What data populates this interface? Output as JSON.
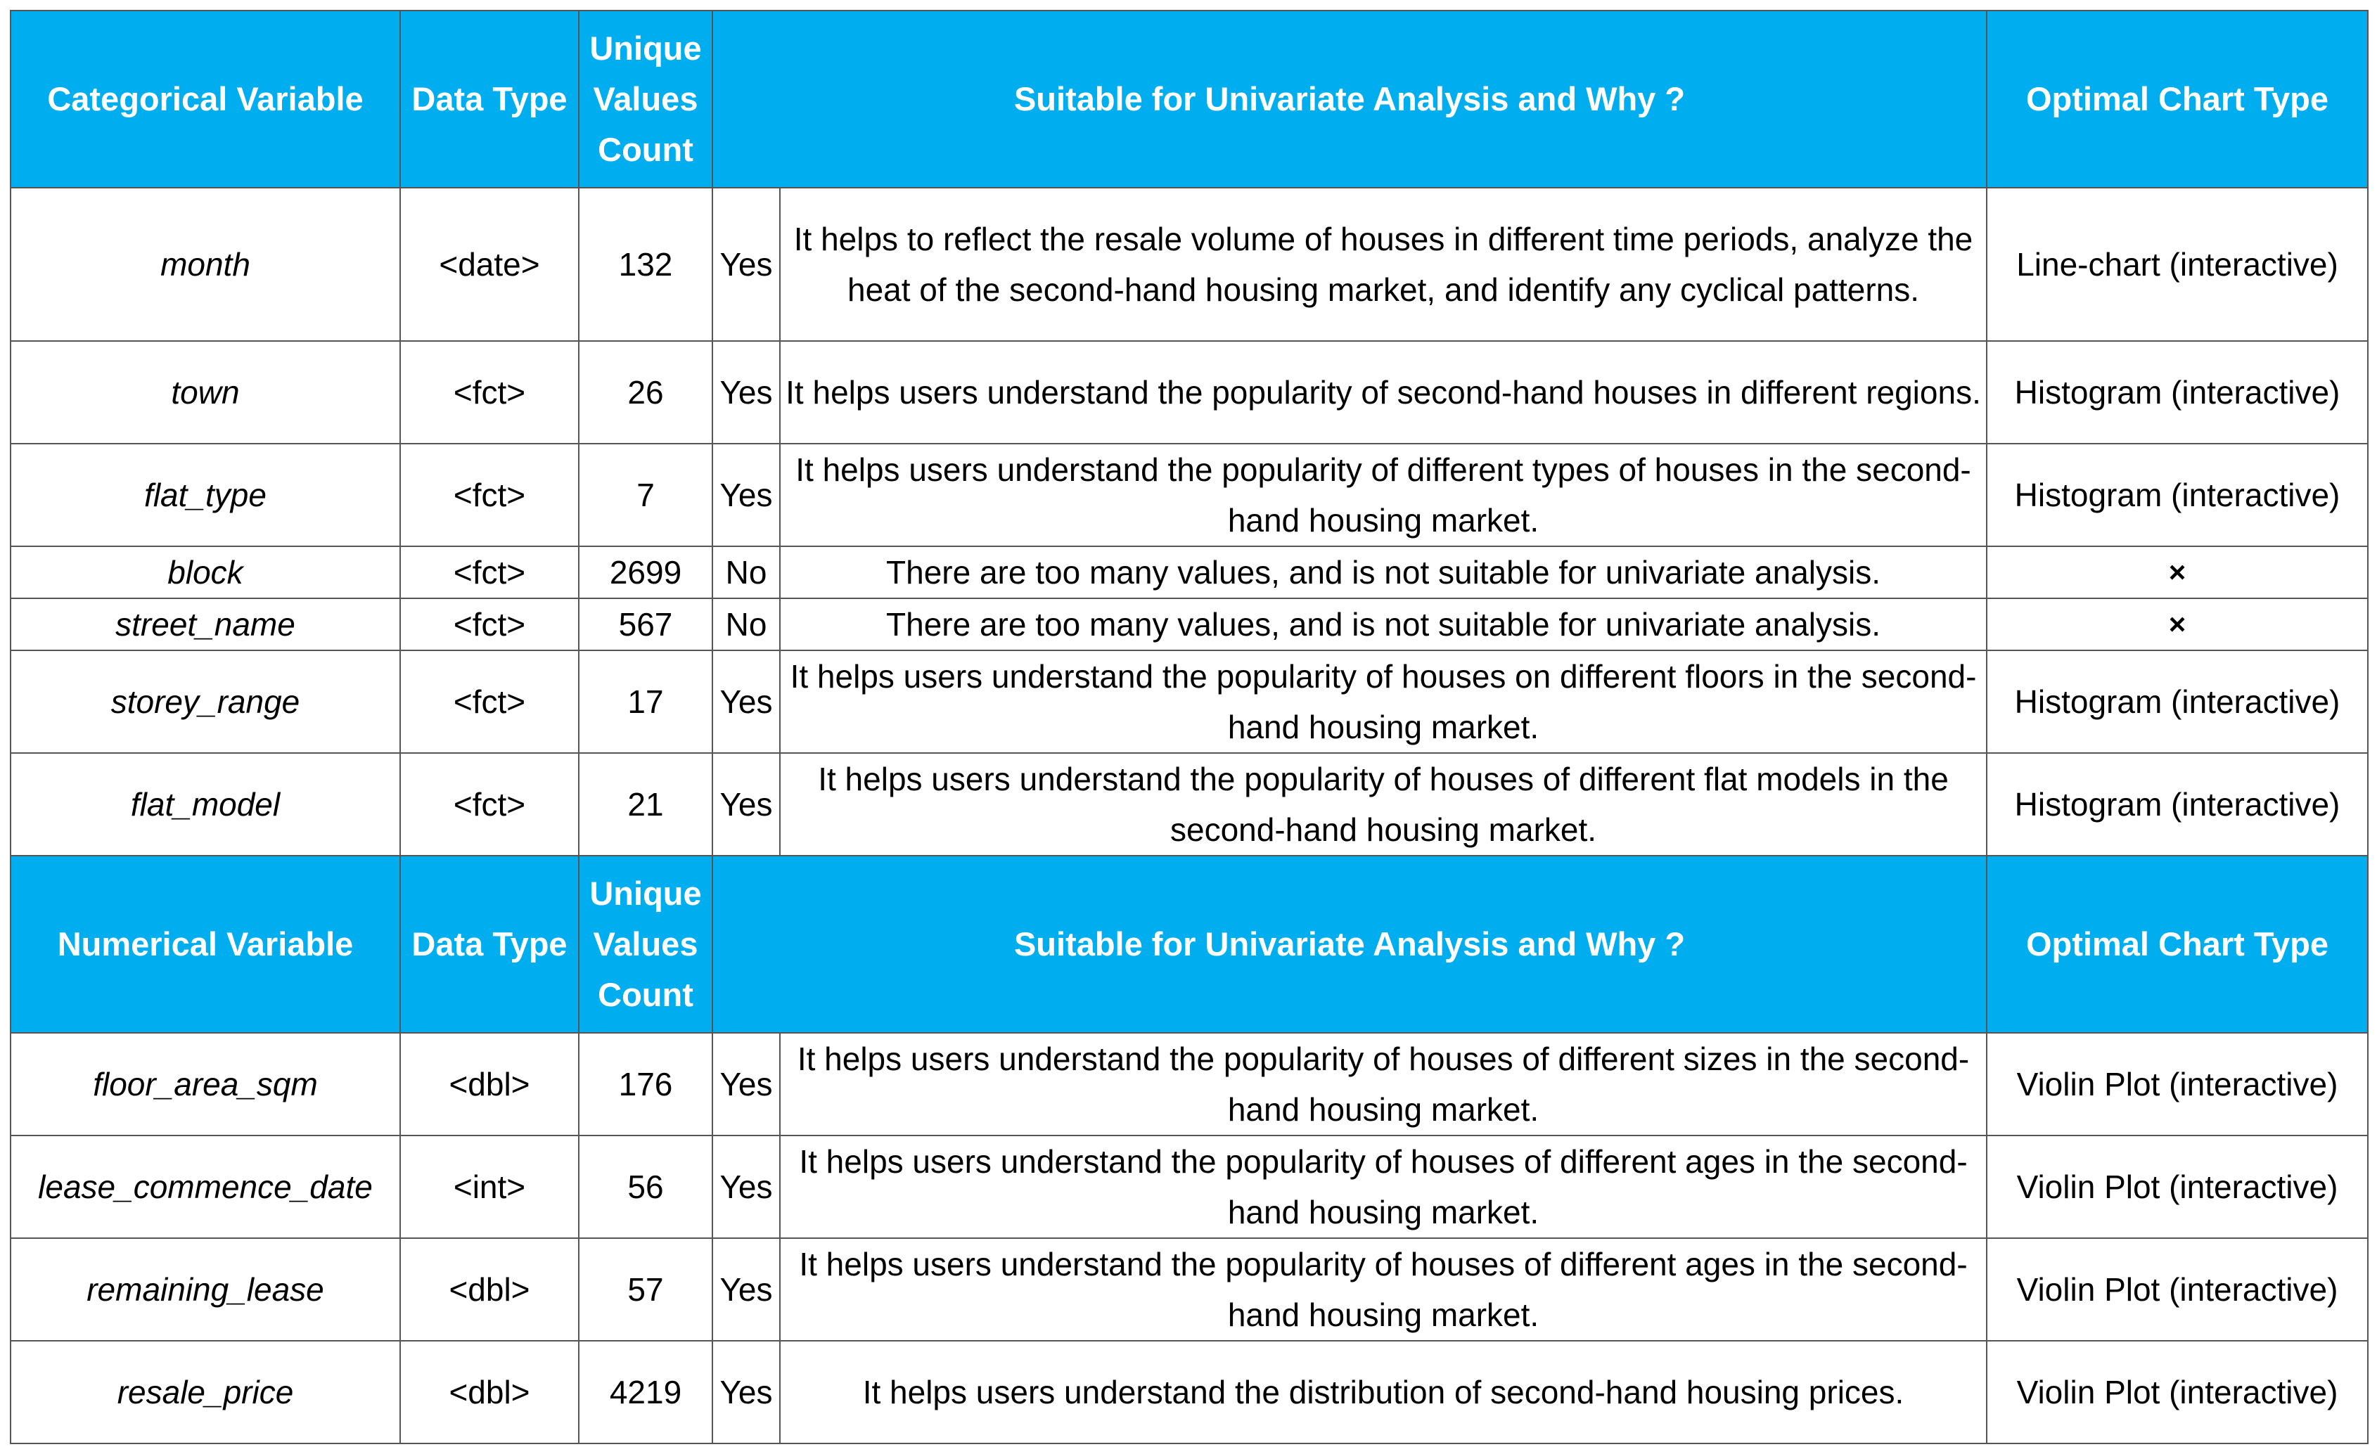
{
  "colors": {
    "header_bg": "#00aeef",
    "header_text": "#ffffff",
    "border": "#555555"
  },
  "sections": [
    {
      "headers": {
        "variable": "Categorical Variable",
        "data_type": "Data Type",
        "unique_count": "Unique Values Count",
        "suitable": "Suitable for Univariate Analysis and Why ?",
        "chart": "Optimal Chart Type"
      },
      "rows": [
        {
          "variable": "month",
          "data_type": "<date>",
          "count": "132",
          "yesno": "Yes",
          "why": "It helps to reflect the resale volume of houses in different time periods, analyze the heat of the second-hand housing market, and identify any cyclical patterns.",
          "chart": "Line-chart (interactive)"
        },
        {
          "variable": "town",
          "data_type": "<fct>",
          "count": "26",
          "yesno": "Yes",
          "why": "It helps users understand the popularity of second-hand houses in different regions.",
          "chart": "Histogram (interactive)"
        },
        {
          "variable": "flat_type",
          "data_type": "<fct>",
          "count": "7",
          "yesno": "Yes",
          "why": "It helps users understand the popularity of different types of houses in the second-hand housing market.",
          "chart": "Histogram (interactive)"
        },
        {
          "variable": "block",
          "data_type": "<fct>",
          "count": "2699",
          "yesno": "No",
          "why": "There are too many values, and is not suitable for univariate analysis.",
          "chart": "×"
        },
        {
          "variable": "street_name",
          "data_type": "<fct>",
          "count": "567",
          "yesno": "No",
          "why": "There are too many values, and is not suitable for univariate analysis.",
          "chart": "×"
        },
        {
          "variable": "storey_range",
          "data_type": "<fct>",
          "count": "17",
          "yesno": "Yes",
          "why": "It helps users understand the popularity of houses on different floors in the second-hand housing market.",
          "chart": "Histogram (interactive)"
        },
        {
          "variable": "flat_model",
          "data_type": "<fct>",
          "count": "21",
          "yesno": "Yes",
          "why": "It helps users understand the popularity of houses of different flat models in the second-hand housing market.",
          "chart": "Histogram (interactive)"
        }
      ]
    },
    {
      "headers": {
        "variable": "Numerical Variable",
        "data_type": "Data Type",
        "unique_count": "Unique Values Count",
        "suitable": "Suitable for Univariate Analysis and Why ?",
        "chart": "Optimal Chart Type"
      },
      "rows": [
        {
          "variable": "floor_area_sqm",
          "data_type": "<dbl>",
          "count": "176",
          "yesno": "Yes",
          "why": "It helps users understand the popularity of houses of different sizes in the second-hand housing market.",
          "chart": "Violin Plot (interactive)"
        },
        {
          "variable": "lease_commence_date",
          "data_type": "<int>",
          "count": "56",
          "yesno": "Yes",
          "why": "It helps users understand the popularity of houses of different ages in the second-hand housing market.",
          "chart": "Violin Plot (interactive)"
        },
        {
          "variable": "remaining_lease",
          "data_type": "<dbl>",
          "count": "57",
          "yesno": "Yes",
          "why": "It helps users understand the popularity of houses of different ages in the second-hand housing market.",
          "chart": "Violin Plot (interactive)"
        },
        {
          "variable": "resale_price",
          "data_type": "<dbl>",
          "count": "4219",
          "yesno": "Yes",
          "why": "It helps users understand the distribution of second-hand housing prices.",
          "chart": "Violin Plot (interactive)"
        }
      ]
    }
  ]
}
